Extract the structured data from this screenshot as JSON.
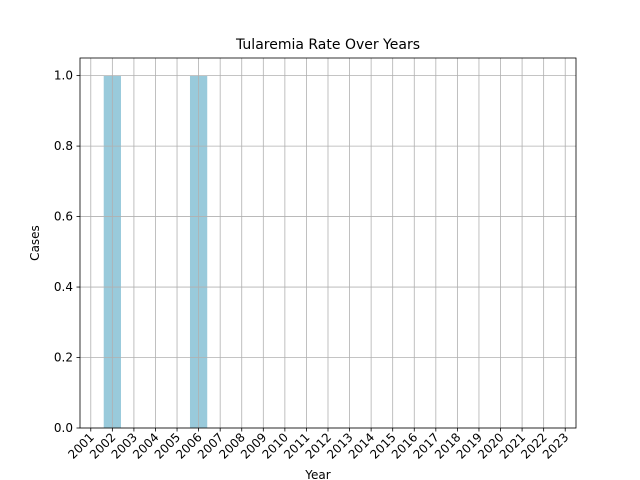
{
  "chart_data": {
    "type": "bar",
    "title": "Tularemia Rate Over Years",
    "x_label": "Year",
    "y_label": "Cases",
    "categories": [
      "2001",
      "2002",
      "2003",
      "2004",
      "2005",
      "2006",
      "2007",
      "2008",
      "2009",
      "2010",
      "2011",
      "2012",
      "2013",
      "2014",
      "2015",
      "2016",
      "2017",
      "2018",
      "2019",
      "2020",
      "2021",
      "2022",
      "2023"
    ],
    "values": [
      0,
      1,
      0,
      0,
      0,
      1,
      0,
      0,
      0,
      0,
      0,
      0,
      0,
      0,
      0,
      0,
      0,
      0,
      0,
      0,
      0,
      0,
      0
    ],
    "color": "#99cadb",
    "ylim": [
      0,
      1.05
    ],
    "yticks": [
      {
        "value": 0,
        "label": "0.0"
      },
      {
        "value": 0.2,
        "label": "0.2"
      },
      {
        "value": 0.4,
        "label": "0.4"
      },
      {
        "value": 0.6,
        "label": "0.6"
      },
      {
        "value": 0.8,
        "label": "0.8"
      },
      {
        "value": 1,
        "label": "1.0"
      }
    ],
    "grid": true
  }
}
